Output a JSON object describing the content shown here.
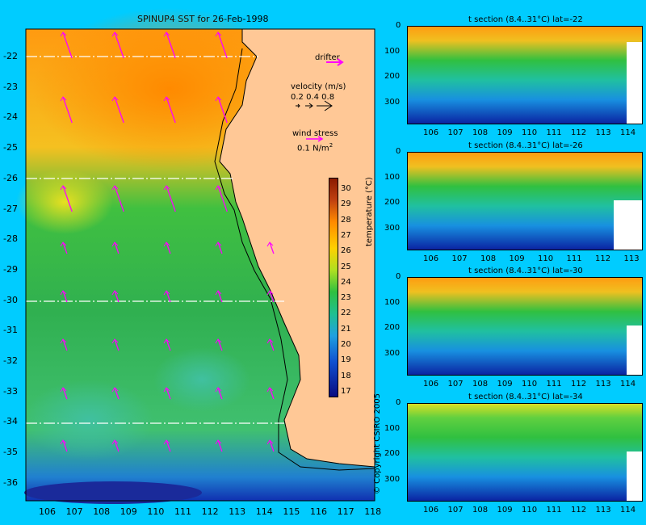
{
  "main_map": {
    "title": "SPINUP4 SST for 26-Feb-1998",
    "lon_ticks": [
      "106",
      "107",
      "108",
      "109",
      "110",
      "111",
      "112",
      "113",
      "114",
      "115",
      "116",
      "117",
      "118"
    ],
    "lat_ticks": [
      "-22",
      "-23",
      "-24",
      "-25",
      "-26",
      "-27",
      "-28",
      "-29",
      "-30",
      "-31",
      "-32",
      "-33",
      "-34",
      "-35",
      "-36"
    ],
    "section_lats": [
      -22,
      -26,
      -30,
      -34
    ],
    "colors": {
      "land": "#ffc896",
      "arrow": "#ff00ff",
      "background": "#00ccff"
    }
  },
  "legend": {
    "drifter_label": "drifter",
    "velocity_label": "velocity (m/s)",
    "velocity_values": "0.2 0.4 0.8",
    "wind_label": "wind stress",
    "wind_value": "0.1 N/m",
    "wind_sup": "2"
  },
  "colorbar": {
    "label": "temperature (°C)",
    "ticks": [
      "30",
      "29",
      "28",
      "27",
      "26",
      "25",
      "24",
      "23",
      "22",
      "21",
      "20",
      "19",
      "18",
      "17"
    ]
  },
  "copyright": "© Copyright CSIRO 2005",
  "sections": [
    {
      "title": "t section (8.4..31°C) lat=-22",
      "x_ticks": [
        "106",
        "107",
        "108",
        "109",
        "110",
        "111",
        "112",
        "113",
        "114"
      ],
      "y_ticks": [
        "0",
        "100",
        "200",
        "300"
      ]
    },
    {
      "title": "t section (8.4..31°C) lat=-26",
      "x_ticks": [
        "106",
        "107",
        "108",
        "109",
        "110",
        "111",
        "112",
        "113"
      ],
      "y_ticks": [
        "0",
        "100",
        "200",
        "300"
      ]
    },
    {
      "title": "t section (8.4..31°C) lat=-30",
      "x_ticks": [
        "106",
        "107",
        "108",
        "109",
        "110",
        "111",
        "112",
        "113",
        "114"
      ],
      "y_ticks": [
        "0",
        "100",
        "200",
        "300"
      ]
    },
    {
      "title": "t section (8.4..31°C) lat=-34",
      "x_ticks": [
        "106",
        "107",
        "108",
        "109",
        "110",
        "111",
        "112",
        "113",
        "114"
      ],
      "y_ticks": [
        "0",
        "100",
        "200",
        "300"
      ]
    }
  ]
}
